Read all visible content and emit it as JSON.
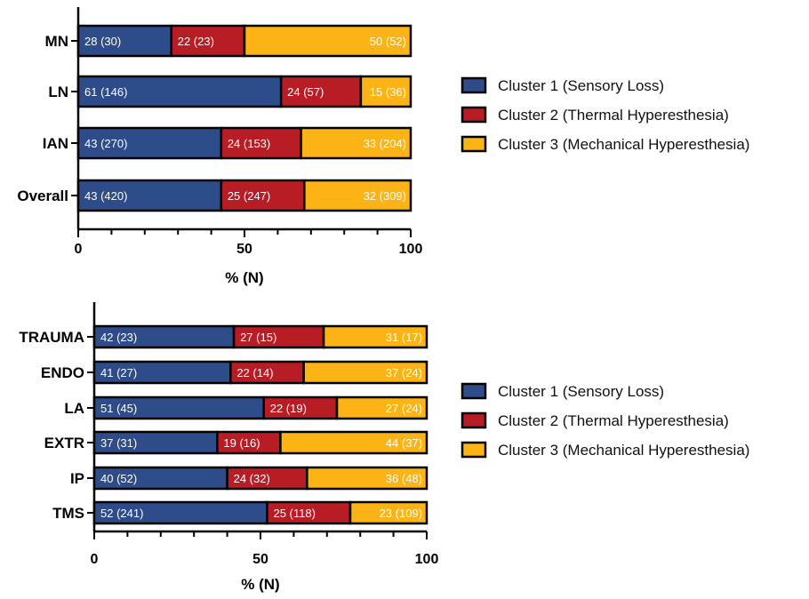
{
  "colors": {
    "cluster1": "#2e4b8a",
    "cluster2": "#b81d26",
    "cluster3": "#fbb315",
    "axis": "#000000"
  },
  "legend": [
    {
      "label": "Cluster 1 (Sensory Loss)",
      "color_key": "cluster1"
    },
    {
      "label": "Cluster 2 (Thermal Hyperesthesia)",
      "color_key": "cluster2"
    },
    {
      "label": "Cluster 3 (Mechanical Hyperesthesia)",
      "color_key": "cluster3"
    }
  ],
  "chart_data": [
    {
      "type": "bar",
      "orientation": "horizontal",
      "stacked": true,
      "categories": [
        "MN",
        "LN",
        "IAN",
        "Overall"
      ],
      "series": [
        {
          "name": "Cluster 1 (Sensory Loss)",
          "values": [
            28,
            61,
            43,
            43
          ],
          "labels": [
            "28 (30)",
            "61 (146)",
            "43 (270)",
            "43 (420)"
          ]
        },
        {
          "name": "Cluster 2 (Thermal Hyperesthesia)",
          "values": [
            22,
            24,
            24,
            25
          ],
          "labels": [
            "22 (23)",
            "24 (57)",
            "24 (153)",
            "25 (247)"
          ]
        },
        {
          "name": "Cluster 3 (Mechanical Hyperesthesia)",
          "values": [
            50,
            15,
            33,
            32
          ],
          "labels": [
            "50 (52)",
            "15 (36)",
            "33 (204)",
            "32 (309)"
          ]
        }
      ],
      "xlabel": "% (N)",
      "xlim": [
        0,
        100
      ],
      "xticks": [
        "0",
        "50",
        "100"
      ],
      "legend_position": "right"
    },
    {
      "type": "bar",
      "orientation": "horizontal",
      "stacked": true,
      "categories": [
        "TRAUMA",
        "ENDO",
        "LA",
        "EXTR",
        "IP",
        "TMS"
      ],
      "series": [
        {
          "name": "Cluster 1 (Sensory Loss)",
          "values": [
            42,
            41,
            51,
            37,
            40,
            52
          ],
          "labels": [
            "42 (23)",
            "41 (27)",
            "51 (45)",
            "37 (31)",
            "40 (52)",
            "52 (241)"
          ]
        },
        {
          "name": "Cluster 2 (Thermal Hyperesthesia)",
          "values": [
            27,
            22,
            22,
            19,
            24,
            25
          ],
          "labels": [
            "27 (15)",
            "22 (14)",
            "22 (19)",
            "19 (16)",
            "24 (32)",
            "25 (118)"
          ]
        },
        {
          "name": "Cluster 3 (Mechanical Hyperesthesia)",
          "values": [
            31,
            37,
            27,
            44,
            36,
            23
          ],
          "labels": [
            "31 (17)",
            "37 (24)",
            "27 (24)",
            "44 (37)",
            "36 (48)",
            "23 (109)"
          ]
        }
      ],
      "xlabel": "% (N)",
      "xlim": [
        0,
        100
      ],
      "xticks": [
        "0",
        "50",
        "100"
      ],
      "legend_position": "right"
    }
  ]
}
